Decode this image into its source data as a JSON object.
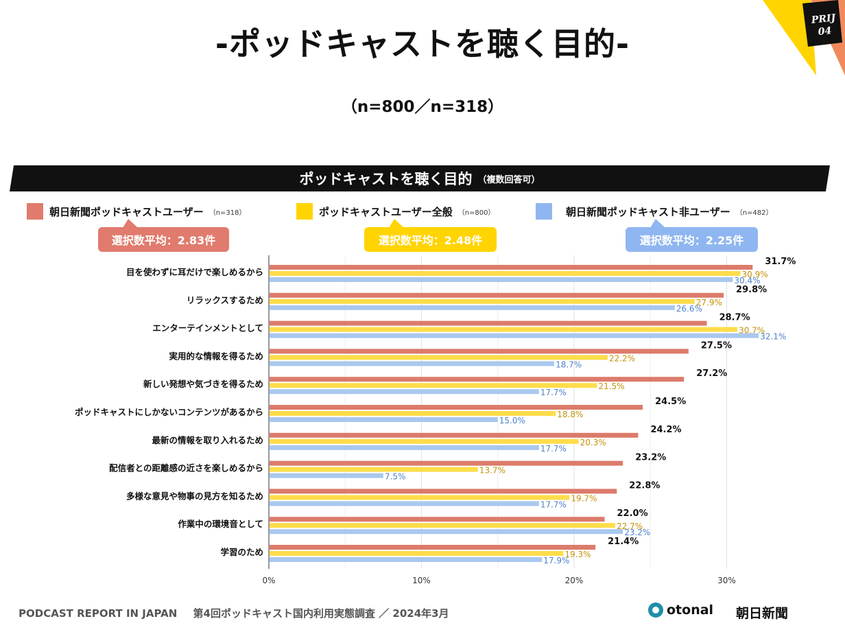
{
  "page": {
    "title": "-ポッドキャストを聴く目的-",
    "subtitle": "（n=800／n=318）",
    "corner_tag_line1": "PRIJ",
    "corner_tag_line2": "04",
    "banner_title": "ポッドキャストを聴く目的",
    "banner_note": "（複数回答可）",
    "footer_report": "PODCAST REPORT IN JAPAN",
    "footer_survey": "第4回ポッドキャスト国内利用実態調査 ／ 2024年3月",
    "otonal_logo": "otonal",
    "asahi_logo": "朝日新聞"
  },
  "legend": [
    {
      "label": "朝日新聞ポッドキャストユーザー",
      "n": "（n=318）",
      "color": "#e07b6e"
    },
    {
      "label": "ポッドキャストユーザー全般",
      "n": "（n=800）",
      "color": "#ffd400"
    },
    {
      "label": "朝日新聞ポッドキャスト非ユーザー",
      "n": "（n=482）",
      "color": "#8fb6f0"
    }
  ],
  "badges": [
    {
      "text": "選択数平均：2.83件",
      "color": "#e07b6e"
    },
    {
      "text": "選択数平均：2.48件",
      "color": "#ffd400"
    },
    {
      "text": "選択数平均：2.25件",
      "color": "#8fb6f0"
    }
  ],
  "chart_data": {
    "type": "bar",
    "orientation": "horizontal",
    "title": "ポッドキャストを聴く目的",
    "xlim": [
      0,
      35
    ],
    "ticks": [
      0,
      10,
      20,
      30
    ],
    "tick_labels": [
      "0%",
      "10%",
      "20%",
      "30%"
    ],
    "categories": [
      "目を使わずに耳だけで楽しめるから",
      "リラックスするため",
      "エンターテインメントとして",
      "実用的な情報を得るため",
      "新しい発想や気づきを得るため",
      "ポッドキャストにしかないコンテンツがあるから",
      "最新の情報を取り入れるため",
      "配信者との距離感の近さを楽しめるから",
      "多様な意見や物事の見方を知るため",
      "作業中の環境音として",
      "学習のため"
    ],
    "series": [
      {
        "name": "朝日新聞ポッドキャストユーザー",
        "bar_color": "#dc7b6b",
        "label_color": "#111111",
        "values": [
          31.7,
          29.8,
          28.7,
          27.5,
          27.2,
          24.5,
          24.2,
          23.2,
          22.8,
          22.0,
          21.4
        ],
        "labels": [
          "31.7%",
          "29.8%",
          "28.7%",
          "27.5%",
          "27.2%",
          "24.5%",
          "24.2%",
          "23.2%",
          "22.8%",
          "22.0%",
          "21.4%"
        ]
      },
      {
        "name": "ポッドキャストユーザー全般",
        "bar_color": "#ffdd4a",
        "label_color": "#c4920a",
        "values": [
          30.9,
          27.9,
          30.7,
          22.2,
          21.5,
          18.8,
          20.3,
          13.7,
          19.7,
          22.7,
          19.3
        ],
        "labels": [
          "30.9%",
          "27.9%",
          "30.7%",
          "22.2%",
          "21.5%",
          "18.8%",
          "20.3%",
          "13.7%",
          "19.7%",
          "22.7%",
          "19.3%"
        ]
      },
      {
        "name": "朝日新聞ポッドキャスト非ユーザー",
        "bar_color": "#a9c8ee",
        "label_color": "#4f82c9",
        "values": [
          30.4,
          26.6,
          32.1,
          18.7,
          17.7,
          15.0,
          17.7,
          7.5,
          17.7,
          23.2,
          17.9
        ],
        "labels": [
          "30.4%",
          "26.6%",
          "32.1%",
          "18.7%",
          "17.7%",
          "15.0%",
          "17.7%",
          "7.5%",
          "17.7%",
          "23.2%",
          "17.9%"
        ]
      }
    ]
  }
}
